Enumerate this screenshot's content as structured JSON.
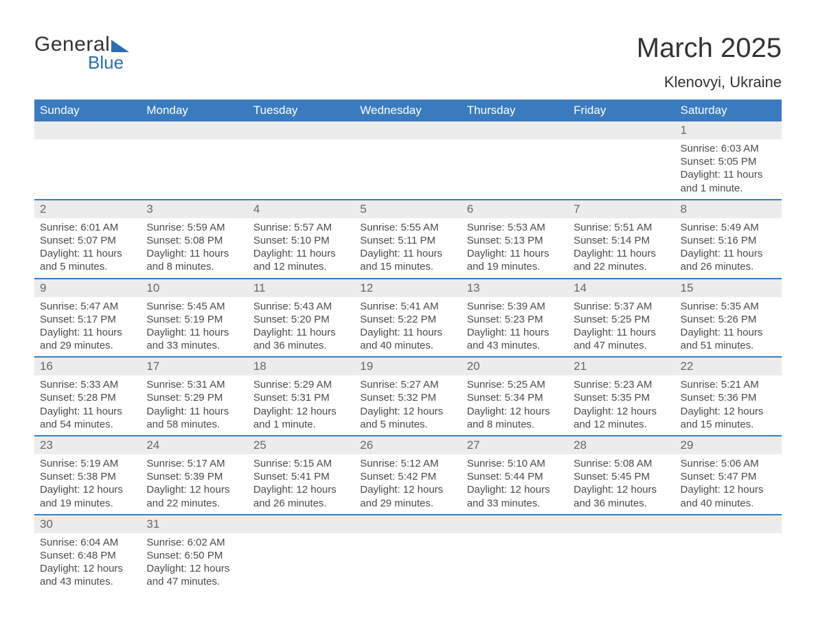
{
  "logo": {
    "text1": "General",
    "text2": "Blue"
  },
  "title": "March 2025",
  "location": "Klenovyi, Ukraine",
  "columns": [
    "Sunday",
    "Monday",
    "Tuesday",
    "Wednesday",
    "Thursday",
    "Friday",
    "Saturday"
  ],
  "colors": {
    "header_bg": "#3a7bbf",
    "header_text": "#ffffff",
    "daynum_bg": "#ececec",
    "row_border": "#3a7bbf",
    "body_text": "#4a4a4a",
    "logo_accent": "#2a6db5"
  },
  "weeks": [
    [
      null,
      null,
      null,
      null,
      null,
      null,
      {
        "n": "1",
        "sr": "Sunrise: 6:03 AM",
        "ss": "Sunset: 5:05 PM",
        "d1": "Daylight: 11 hours",
        "d2": "and 1 minute."
      }
    ],
    [
      {
        "n": "2",
        "sr": "Sunrise: 6:01 AM",
        "ss": "Sunset: 5:07 PM",
        "d1": "Daylight: 11 hours",
        "d2": "and 5 minutes."
      },
      {
        "n": "3",
        "sr": "Sunrise: 5:59 AM",
        "ss": "Sunset: 5:08 PM",
        "d1": "Daylight: 11 hours",
        "d2": "and 8 minutes."
      },
      {
        "n": "4",
        "sr": "Sunrise: 5:57 AM",
        "ss": "Sunset: 5:10 PM",
        "d1": "Daylight: 11 hours",
        "d2": "and 12 minutes."
      },
      {
        "n": "5",
        "sr": "Sunrise: 5:55 AM",
        "ss": "Sunset: 5:11 PM",
        "d1": "Daylight: 11 hours",
        "d2": "and 15 minutes."
      },
      {
        "n": "6",
        "sr": "Sunrise: 5:53 AM",
        "ss": "Sunset: 5:13 PM",
        "d1": "Daylight: 11 hours",
        "d2": "and 19 minutes."
      },
      {
        "n": "7",
        "sr": "Sunrise: 5:51 AM",
        "ss": "Sunset: 5:14 PM",
        "d1": "Daylight: 11 hours",
        "d2": "and 22 minutes."
      },
      {
        "n": "8",
        "sr": "Sunrise: 5:49 AM",
        "ss": "Sunset: 5:16 PM",
        "d1": "Daylight: 11 hours",
        "d2": "and 26 minutes."
      }
    ],
    [
      {
        "n": "9",
        "sr": "Sunrise: 5:47 AM",
        "ss": "Sunset: 5:17 PM",
        "d1": "Daylight: 11 hours",
        "d2": "and 29 minutes."
      },
      {
        "n": "10",
        "sr": "Sunrise: 5:45 AM",
        "ss": "Sunset: 5:19 PM",
        "d1": "Daylight: 11 hours",
        "d2": "and 33 minutes."
      },
      {
        "n": "11",
        "sr": "Sunrise: 5:43 AM",
        "ss": "Sunset: 5:20 PM",
        "d1": "Daylight: 11 hours",
        "d2": "and 36 minutes."
      },
      {
        "n": "12",
        "sr": "Sunrise: 5:41 AM",
        "ss": "Sunset: 5:22 PM",
        "d1": "Daylight: 11 hours",
        "d2": "and 40 minutes."
      },
      {
        "n": "13",
        "sr": "Sunrise: 5:39 AM",
        "ss": "Sunset: 5:23 PM",
        "d1": "Daylight: 11 hours",
        "d2": "and 43 minutes."
      },
      {
        "n": "14",
        "sr": "Sunrise: 5:37 AM",
        "ss": "Sunset: 5:25 PM",
        "d1": "Daylight: 11 hours",
        "d2": "and 47 minutes."
      },
      {
        "n": "15",
        "sr": "Sunrise: 5:35 AM",
        "ss": "Sunset: 5:26 PM",
        "d1": "Daylight: 11 hours",
        "d2": "and 51 minutes."
      }
    ],
    [
      {
        "n": "16",
        "sr": "Sunrise: 5:33 AM",
        "ss": "Sunset: 5:28 PM",
        "d1": "Daylight: 11 hours",
        "d2": "and 54 minutes."
      },
      {
        "n": "17",
        "sr": "Sunrise: 5:31 AM",
        "ss": "Sunset: 5:29 PM",
        "d1": "Daylight: 11 hours",
        "d2": "and 58 minutes."
      },
      {
        "n": "18",
        "sr": "Sunrise: 5:29 AM",
        "ss": "Sunset: 5:31 PM",
        "d1": "Daylight: 12 hours",
        "d2": "and 1 minute."
      },
      {
        "n": "19",
        "sr": "Sunrise: 5:27 AM",
        "ss": "Sunset: 5:32 PM",
        "d1": "Daylight: 12 hours",
        "d2": "and 5 minutes."
      },
      {
        "n": "20",
        "sr": "Sunrise: 5:25 AM",
        "ss": "Sunset: 5:34 PM",
        "d1": "Daylight: 12 hours",
        "d2": "and 8 minutes."
      },
      {
        "n": "21",
        "sr": "Sunrise: 5:23 AM",
        "ss": "Sunset: 5:35 PM",
        "d1": "Daylight: 12 hours",
        "d2": "and 12 minutes."
      },
      {
        "n": "22",
        "sr": "Sunrise: 5:21 AM",
        "ss": "Sunset: 5:36 PM",
        "d1": "Daylight: 12 hours",
        "d2": "and 15 minutes."
      }
    ],
    [
      {
        "n": "23",
        "sr": "Sunrise: 5:19 AM",
        "ss": "Sunset: 5:38 PM",
        "d1": "Daylight: 12 hours",
        "d2": "and 19 minutes."
      },
      {
        "n": "24",
        "sr": "Sunrise: 5:17 AM",
        "ss": "Sunset: 5:39 PM",
        "d1": "Daylight: 12 hours",
        "d2": "and 22 minutes."
      },
      {
        "n": "25",
        "sr": "Sunrise: 5:15 AM",
        "ss": "Sunset: 5:41 PM",
        "d1": "Daylight: 12 hours",
        "d2": "and 26 minutes."
      },
      {
        "n": "26",
        "sr": "Sunrise: 5:12 AM",
        "ss": "Sunset: 5:42 PM",
        "d1": "Daylight: 12 hours",
        "d2": "and 29 minutes."
      },
      {
        "n": "27",
        "sr": "Sunrise: 5:10 AM",
        "ss": "Sunset: 5:44 PM",
        "d1": "Daylight: 12 hours",
        "d2": "and 33 minutes."
      },
      {
        "n": "28",
        "sr": "Sunrise: 5:08 AM",
        "ss": "Sunset: 5:45 PM",
        "d1": "Daylight: 12 hours",
        "d2": "and 36 minutes."
      },
      {
        "n": "29",
        "sr": "Sunrise: 5:06 AM",
        "ss": "Sunset: 5:47 PM",
        "d1": "Daylight: 12 hours",
        "d2": "and 40 minutes."
      }
    ],
    [
      {
        "n": "30",
        "sr": "Sunrise: 6:04 AM",
        "ss": "Sunset: 6:48 PM",
        "d1": "Daylight: 12 hours",
        "d2": "and 43 minutes."
      },
      {
        "n": "31",
        "sr": "Sunrise: 6:02 AM",
        "ss": "Sunset: 6:50 PM",
        "d1": "Daylight: 12 hours",
        "d2": "and 47 minutes."
      },
      null,
      null,
      null,
      null,
      null
    ]
  ]
}
